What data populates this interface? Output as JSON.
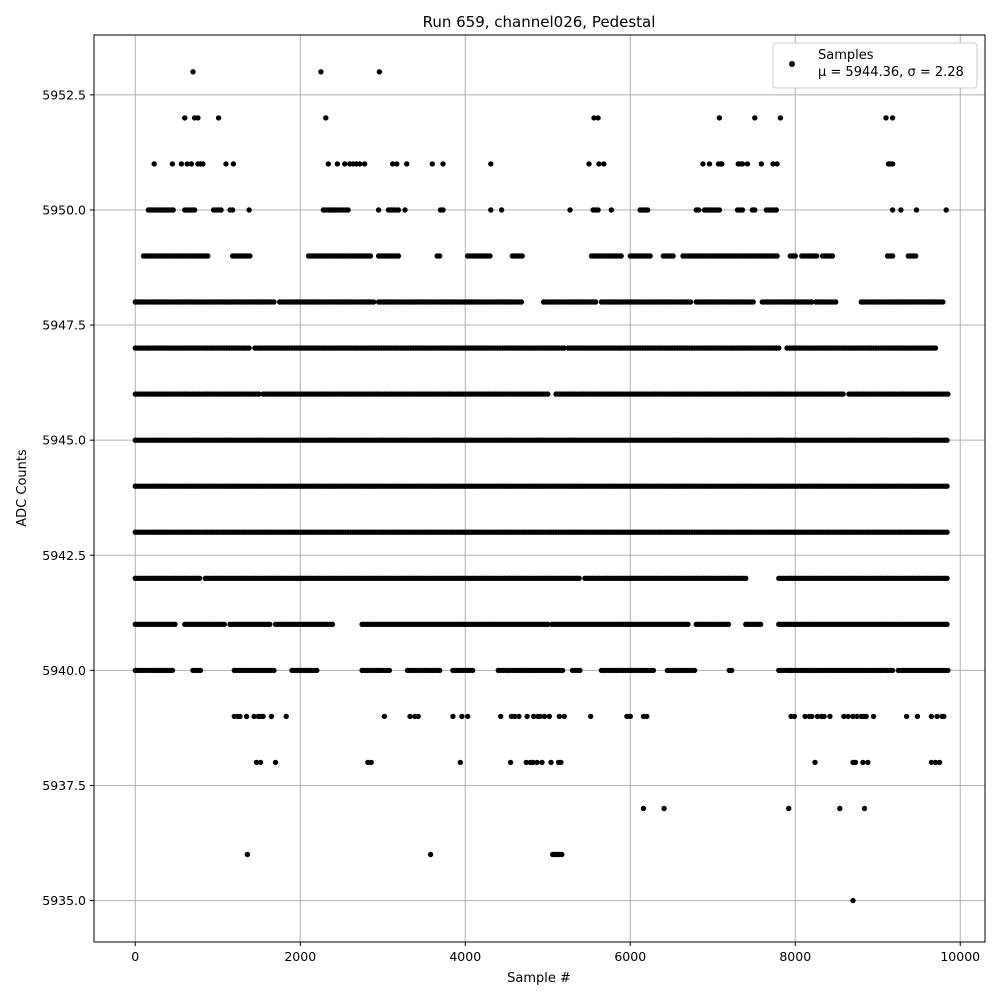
{
  "chart_data": {
    "type": "scatter",
    "title": "Run 659, channel026, Pedestal",
    "xlabel": "Sample #",
    "ylabel": "ADC Counts",
    "xlim": [
      -500,
      10300
    ],
    "ylim": [
      5934.1,
      5953.8
    ],
    "xticks": [
      0,
      2000,
      4000,
      6000,
      8000,
      10000
    ],
    "xtick_labels": [
      "0",
      "2000",
      "4000",
      "6000",
      "8000",
      "10000"
    ],
    "yticks": [
      5935.0,
      5937.5,
      5940.0,
      5942.5,
      5945.0,
      5947.5,
      5950.0,
      5952.5
    ],
    "ytick_labels": [
      "5935.0",
      "5937.5",
      "5940.0",
      "5942.5",
      "5945.0",
      "5947.5",
      "5950.0",
      "5952.5"
    ],
    "grid": true,
    "legend": {
      "placement": "top-right",
      "entries": [
        {
          "name": "Samples",
          "subtitle": "μ = 5944.36, σ = 2.28",
          "marker": "dot",
          "color": "#000000"
        }
      ]
    },
    "series": [
      {
        "name": "Samples",
        "color": "#000000",
        "x_range": [
          0,
          9840
        ],
        "mean": 5944.36,
        "sigma": 2.28,
        "levels": [
          {
            "y": 5953,
            "x": [
              700,
              2250,
              2960
            ]
          },
          {
            "y": 5952,
            "x": [
              600,
              720,
              760,
              1010,
              2310,
              5560,
              5610,
              7080,
              7510,
              7820,
              9100,
              9180
            ]
          },
          {
            "y": 5951,
            "x": [
              230,
              450,
              560,
              630,
              680,
              760,
              790,
              820,
              1100,
              1190,
              2340,
              2450,
              2540,
              2600,
              2640,
              2680,
              2720,
              2780,
              3120,
              3170,
              3290,
              3600,
              3730,
              4310,
              5500,
              5620,
              5680,
              6880,
              6960,
              7070,
              7100,
              7110,
              7310,
              7340,
              7360,
              7420,
              7590,
              7730,
              7780,
              9130,
              9150,
              9180
            ]
          },
          {
            "x_segments": [
              [
                160,
                480
              ],
              [
                600,
                720
              ],
              [
                950,
                1060
              ],
              [
                1150,
                1190
              ],
              [
                1380,
                1400
              ],
              [
                2280,
                2580
              ],
              [
                2950,
                2970
              ],
              [
                3070,
                3200
              ],
              [
                3270,
                3290
              ],
              [
                3700,
                3730
              ],
              [
                4310,
                4320
              ],
              [
                4440,
                4460
              ],
              [
                5270,
                5280
              ],
              [
                5550,
                5620
              ],
              [
                5770,
                5790
              ],
              [
                6120,
                6220
              ],
              [
                6800,
                6850
              ],
              [
                6900,
                7100
              ],
              [
                7300,
                7370
              ],
              [
                7480,
                7530
              ],
              [
                7650,
                7780
              ],
              [
                9180,
                9200
              ],
              [
                9280,
                9300
              ],
              [
                9470,
                9480
              ],
              [
                9830,
                9840
              ]
            ],
            "y": 5950
          },
          {
            "y": 5949,
            "x_segments": [
              [
                100,
                900
              ],
              [
                1180,
                1400
              ],
              [
                2100,
                2850
              ],
              [
                2950,
                3200
              ],
              [
                3660,
                3710
              ],
              [
                4030,
                4310
              ],
              [
                4570,
                4700
              ],
              [
                5530,
                5900
              ],
              [
                6000,
                6250
              ],
              [
                6400,
                6520
              ],
              [
                6640,
                7780
              ],
              [
                7940,
                8010
              ],
              [
                8080,
                8260
              ],
              [
                8330,
                8460
              ],
              [
                9120,
                9190
              ],
              [
                9370,
                9470
              ]
            ]
          },
          {
            "y": 5948,
            "x_segments": [
              [
                0,
                1700
              ],
              [
                1750,
                2900
              ],
              [
                2950,
                3850
              ],
              [
                3870,
                4700
              ],
              [
                4950,
                5600
              ],
              [
                5650,
                6750
              ],
              [
                6800,
                7500
              ],
              [
                7600,
                8200
              ],
              [
                8250,
                8500
              ],
              [
                8800,
                9800
              ]
            ]
          },
          {
            "y": 5947,
            "x_segments": [
              [
                0,
                1400
              ],
              [
                1450,
                5200
              ],
              [
                5250,
                7800
              ],
              [
                7900,
                9700
              ]
            ]
          },
          {
            "y": 5946,
            "x_segments": [
              [
                0,
                1500
              ],
              [
                1550,
                5000
              ],
              [
                5100,
                8600
              ],
              [
                8650,
                9850
              ]
            ]
          },
          {
            "y": 5945,
            "x_segments": [
              [
                0,
                9850
              ]
            ]
          },
          {
            "y": 5944,
            "x_segments": [
              [
                0,
                9850
              ]
            ]
          },
          {
            "y": 5943,
            "x_segments": [
              [
                0,
                9850
              ]
            ]
          },
          {
            "y": 5942,
            "x_segments": [
              [
                0,
                800
              ],
              [
                850,
                5400
              ],
              [
                5450,
                7400
              ],
              [
                7800,
                9850
              ]
            ]
          },
          {
            "y": 5941,
            "x_segments": [
              [
                0,
                500
              ],
              [
                600,
                1100
              ],
              [
                1150,
                1650
              ],
              [
                1700,
                2400
              ],
              [
                2750,
                5000
              ],
              [
                5050,
                6700
              ],
              [
                6800,
                7200
              ],
              [
                7400,
                7600
              ],
              [
                7800,
                9850
              ]
            ]
          },
          {
            "y": 5940,
            "x_segments": [
              [
                0,
                450
              ],
              [
                700,
                800
              ],
              [
                1200,
                1700
              ],
              [
                1900,
                2200
              ],
              [
                2750,
                3100
              ],
              [
                3300,
                3700
              ],
              [
                3850,
                4100
              ],
              [
                4400,
                5200
              ],
              [
                5300,
                5400
              ],
              [
                5650,
                6300
              ],
              [
                6450,
                6800
              ],
              [
                7200,
                7250
              ],
              [
                7800,
                9200
              ],
              [
                9250,
                9850
              ]
            ]
          },
          {
            "y": 5939,
            "x": [
              1200,
              1240,
              1270,
              1350,
              1440,
              1490,
              1520,
              1550,
              1650,
              1830,
              3020,
              3330,
              3390,
              3430,
              3850,
              3960,
              4030,
              4430,
              4560,
              4600,
              4650,
              4750,
              4830,
              4880,
              4910,
              4960,
              5020,
              5140,
              5200,
              5520,
              5960,
              6000,
              6160,
              6200,
              7950,
              7990,
              8120,
              8170,
              8200,
              8270,
              8320,
              8350,
              8420,
              8590,
              8640,
              8700,
              8750,
              8800,
              8830,
              8860,
              8950,
              9350,
              9480,
              9650,
              9720,
              9780,
              9800
            ]
          },
          {
            "y": 5938,
            "x": [
              1470,
              1520,
              1700,
              2820,
              2860,
              3940,
              4550,
              4740,
              4790,
              4820,
              4870,
              4930,
              5040,
              5130,
              5160,
              8240,
              8700,
              8730,
              8820,
              8880,
              9650,
              9700,
              9750
            ]
          },
          {
            "y": 5937,
            "x": [
              6160,
              6410,
              7920,
              8540,
              8840
            ]
          },
          {
            "y": 5936,
            "x": [
              1360,
              3580,
              5060,
              5090,
              5110,
              5140,
              5170
            ]
          },
          {
            "y": 5935,
            "x": [
              8700
            ]
          }
        ]
      }
    ]
  }
}
